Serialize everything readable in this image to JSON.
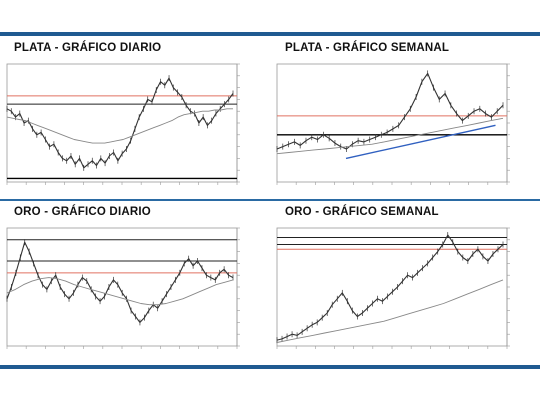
{
  "colors": {
    "rule": "#1f5a91",
    "price": "#333333",
    "hline_red": "#e07060",
    "hline_dark": "#222222",
    "hline_black": "#000000",
    "moving_average": "#888888",
    "trendline": "#3060c0"
  },
  "chart_data": [
    {
      "type": "line",
      "title": "PLATA - GRÁFICO DIARIO",
      "ylim": [
        0,
        100
      ],
      "series": [
        {
          "values": [
            62,
            60,
            55,
            58,
            50,
            52,
            45,
            40,
            42,
            36,
            30,
            32,
            25,
            20,
            18,
            22,
            15,
            20,
            12,
            15,
            18,
            14,
            20,
            16,
            22,
            25,
            18,
            24,
            28,
            35,
            45,
            55,
            62,
            70,
            68,
            78,
            85,
            82,
            88,
            80,
            76,
            72,
            65,
            60,
            58,
            50,
            55,
            48,
            52,
            58,
            62,
            66,
            70,
            75
          ]
        },
        {
          "values": [
            55,
            54,
            53,
            52,
            50,
            48,
            46,
            44,
            42,
            40,
            38,
            36,
            35,
            34,
            33,
            33,
            33,
            34,
            35,
            36,
            38,
            40,
            42,
            44,
            46,
            48,
            50,
            52,
            55,
            57,
            58,
            59,
            60,
            60,
            61,
            61,
            62,
            62
          ]
        }
      ],
      "hlines": [
        {
          "value": 73,
          "color": "red"
        },
        {
          "value": 66,
          "color": "dark"
        },
        {
          "value": 3,
          "color": "black"
        }
      ]
    },
    {
      "type": "line",
      "title": "PLATA - GRÁFICO SEMANAL",
      "ylim": [
        0,
        100
      ],
      "series": [
        {
          "values": [
            28,
            30,
            32,
            34,
            31,
            35,
            38,
            36,
            40,
            37,
            33,
            30,
            28,
            32,
            35,
            34,
            36,
            38,
            40,
            42,
            45,
            48,
            55,
            62,
            72,
            85,
            92,
            80,
            70,
            75,
            65,
            58,
            52,
            56,
            60,
            62,
            58,
            55,
            60,
            65
          ]
        },
        {
          "values": [
            24,
            25,
            26,
            27,
            28,
            29,
            30,
            31,
            32,
            34,
            36,
            38,
            40,
            42,
            44,
            46,
            48,
            50,
            52,
            54
          ]
        }
      ],
      "hlines": [
        {
          "value": 56,
          "color": "red"
        },
        {
          "value": 40,
          "color": "black"
        }
      ],
      "trendlines": [
        {
          "from": [
            0.3,
            20
          ],
          "to": [
            0.95,
            48
          ]
        }
      ]
    },
    {
      "type": "line",
      "title": "ORO - GRÁFICO DIARIO",
      "ylim": [
        0,
        100
      ],
      "series": [
        {
          "values": [
            40,
            50,
            62,
            75,
            88,
            80,
            70,
            60,
            52,
            48,
            55,
            60,
            50,
            44,
            40,
            45,
            52,
            58,
            55,
            48,
            42,
            38,
            42,
            50,
            56,
            52,
            45,
            40,
            30,
            25,
            20,
            24,
            30,
            35,
            32,
            38,
            44,
            50,
            56,
            62,
            70,
            74,
            68,
            72,
            66,
            60,
            58,
            56,
            62,
            65,
            60,
            58
          ]
        },
        {
          "values": [
            45,
            48,
            52,
            55,
            57,
            58,
            57,
            55,
            52,
            50,
            48,
            46,
            44,
            42,
            40,
            38,
            36,
            35,
            35,
            36,
            38,
            40,
            43,
            46,
            49,
            52,
            54,
            56
          ]
        }
      ],
      "hlines": [
        {
          "value": 90,
          "color": "dark"
        },
        {
          "value": 72,
          "color": "dark"
        },
        {
          "value": 62,
          "color": "red"
        }
      ]
    },
    {
      "type": "line",
      "title": "ORO - GRÁFICO SEMANAL",
      "ylim": [
        0,
        100
      ],
      "series": [
        {
          "values": [
            5,
            6,
            8,
            10,
            9,
            12,
            15,
            18,
            20,
            24,
            28,
            35,
            40,
            45,
            38,
            30,
            25,
            28,
            32,
            36,
            40,
            38,
            42,
            46,
            50,
            55,
            60,
            58,
            62,
            66,
            70,
            75,
            80,
            86,
            94,
            88,
            80,
            75,
            72,
            78,
            82,
            76,
            72,
            78,
            82,
            86
          ]
        },
        {
          "values": [
            3,
            5,
            7,
            9,
            11,
            13,
            15,
            17,
            19,
            21,
            24,
            27,
            30,
            33,
            36,
            40,
            44,
            48,
            52,
            56
          ]
        }
      ],
      "hlines": [
        {
          "value": 92,
          "color": "dark"
        },
        {
          "value": 86,
          "color": "dark"
        },
        {
          "value": 82,
          "color": "red"
        }
      ]
    }
  ]
}
